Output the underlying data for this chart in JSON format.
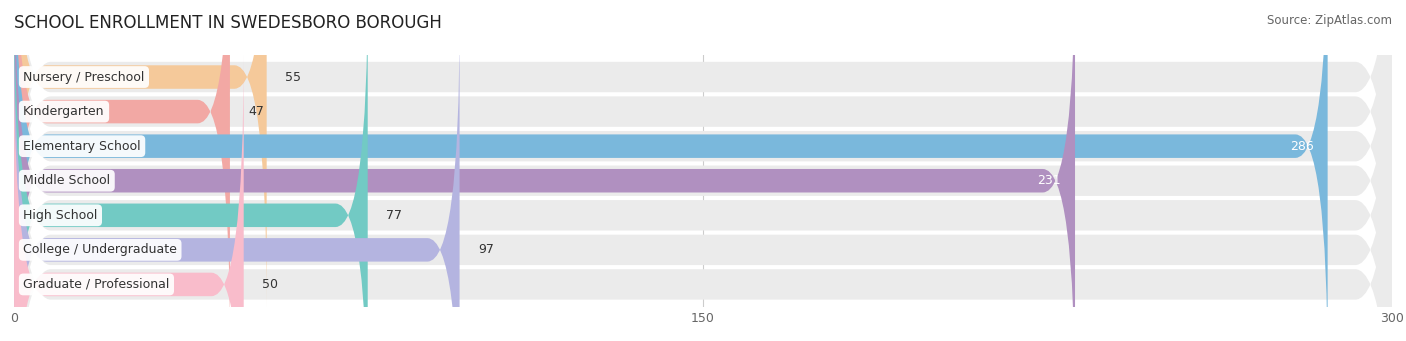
{
  "title": "SCHOOL ENROLLMENT IN SWEDESBORO BOROUGH",
  "source": "Source: ZipAtlas.com",
  "categories": [
    "Nursery / Preschool",
    "Kindergarten",
    "Elementary School",
    "Middle School",
    "High School",
    "College / Undergraduate",
    "Graduate / Professional"
  ],
  "values": [
    55,
    47,
    286,
    231,
    77,
    97,
    50
  ],
  "bar_colors": [
    "#f5c99a",
    "#f2a8a4",
    "#7ab8dc",
    "#b090c0",
    "#72cac4",
    "#b4b4e0",
    "#f9bccb"
  ],
  "row_bg_color": "#ebebeb",
  "xlim_max": 300,
  "xticks": [
    0,
    150,
    300
  ],
  "title_fontsize": 12,
  "source_fontsize": 8.5,
  "label_fontsize": 9,
  "value_fontsize": 9,
  "background_color": "#ffffff"
}
